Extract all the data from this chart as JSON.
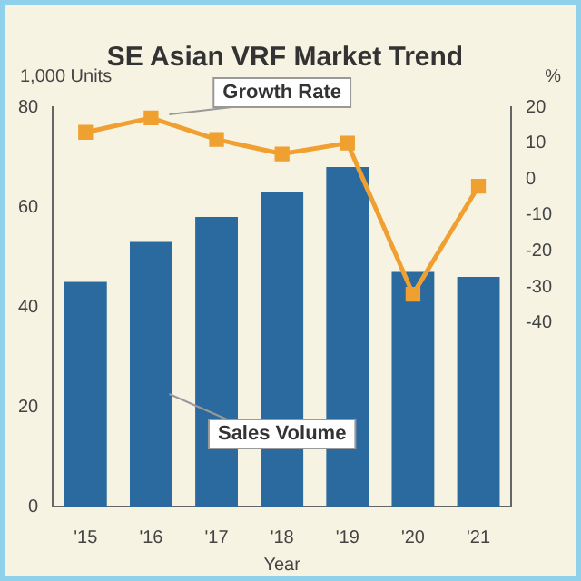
{
  "chart_data": {
    "type": "bar",
    "title": "SE Asian VRF Market Trend",
    "xlabel": "Year",
    "ylabel": "1,000 Units",
    "y2label": "%",
    "categories": [
      "'15",
      "'16",
      "'17",
      "'18",
      "'19",
      "'20",
      "'21"
    ],
    "series": [
      {
        "name": "Sales Volume",
        "color": "#2b6a9e",
        "values": [
          45,
          53,
          58,
          63,
          68,
          47,
          46
        ]
      },
      {
        "name": "Growth Rate",
        "type": "line",
        "axis": "y2",
        "color": "#f0a030",
        "values": [
          13,
          17,
          11,
          7,
          10,
          -32,
          -2
        ]
      }
    ],
    "ylim": [
      0,
      80
    ],
    "yticks": [
      0,
      20,
      40,
      60,
      80
    ],
    "y2lim": [
      -91,
      20
    ],
    "y2ticks": [
      20,
      10,
      0,
      -10,
      -20,
      -30,
      -40
    ],
    "marker": "square",
    "grid": false,
    "legend": false
  }
}
